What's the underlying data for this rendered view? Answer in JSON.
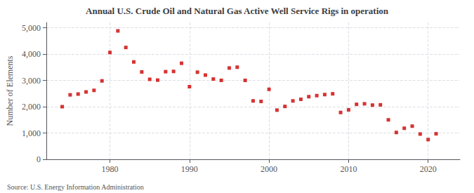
{
  "chart_data": {
    "type": "scatter",
    "title": "Annual U.S. Crude Oil and Natural Gas Active Well Service Rigs in operation",
    "ylabel": "Number of Elements",
    "annotations": [
      "Source: U.S. Energy Information Administration"
    ],
    "x": [
      1974,
      1975,
      1976,
      1977,
      1978,
      1979,
      1980,
      1981,
      1982,
      1983,
      1984,
      1985,
      1986,
      1987,
      1988,
      1989,
      1990,
      1991,
      1992,
      1993,
      1994,
      1995,
      1996,
      1997,
      1998,
      1999,
      2000,
      2001,
      2002,
      2003,
      2004,
      2005,
      2006,
      2007,
      2008,
      2009,
      2010,
      2011,
      2012,
      2013,
      2014,
      2015,
      2016,
      2017,
      2018,
      2019,
      2020,
      2021
    ],
    "values": [
      2000,
      2450,
      2480,
      2560,
      2620,
      2980,
      4060,
      4880,
      4250,
      3700,
      3320,
      3040,
      3010,
      3330,
      3340,
      3650,
      2760,
      3310,
      3200,
      3050,
      3000,
      3470,
      3500,
      3000,
      2220,
      2200,
      2660,
      1870,
      2010,
      2220,
      2280,
      2380,
      2420,
      2460,
      2490,
      1780,
      1880,
      2090,
      2110,
      2060,
      2070,
      1500,
      1020,
      1180,
      1260,
      960,
      750,
      970
    ],
    "color": "#cc0000",
    "marker": "square",
    "xlim": [
      1972,
      2024
    ],
    "xticks": [
      1980,
      1990,
      2000,
      2010,
      2020
    ],
    "ylim": [
      0,
      5200
    ],
    "yticks": [
      0,
      {
        "value": 1000,
        "label": "1,000"
      },
      {
        "value": 2000,
        "label": "2,000"
      },
      {
        "value": 3000,
        "label": "3,000"
      },
      {
        "value": 4000,
        "label": "4,000"
      },
      {
        "value": 5000,
        "label": "5,000"
      }
    ],
    "grid": true
  }
}
